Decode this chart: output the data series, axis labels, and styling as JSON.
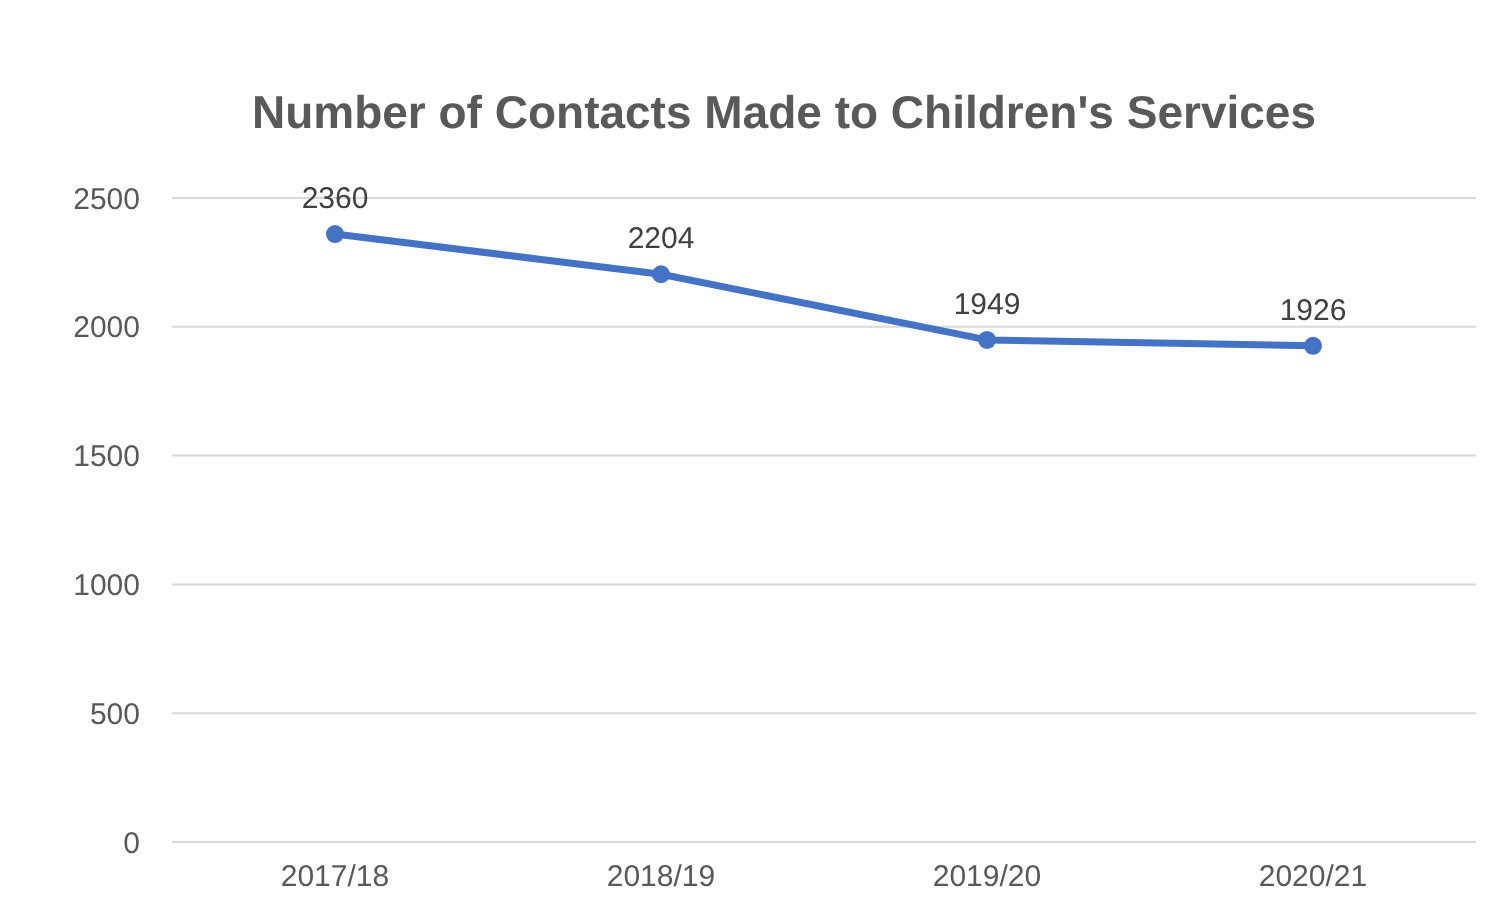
{
  "chart_data": {
    "type": "line",
    "title": "Number of Contacts Made to Children's Services",
    "categories": [
      "2017/18",
      "2018/19",
      "2019/20",
      "2020/21"
    ],
    "series": [
      {
        "color": "#4472c4",
        "values": [
          2360,
          2204,
          1949,
          1926
        ]
      }
    ],
    "ylim": [
      0,
      2500
    ],
    "yticks": [
      0,
      500,
      1000,
      1500,
      2000,
      2500
    ],
    "grid": "y",
    "marker": "circle",
    "data_labels": true
  }
}
